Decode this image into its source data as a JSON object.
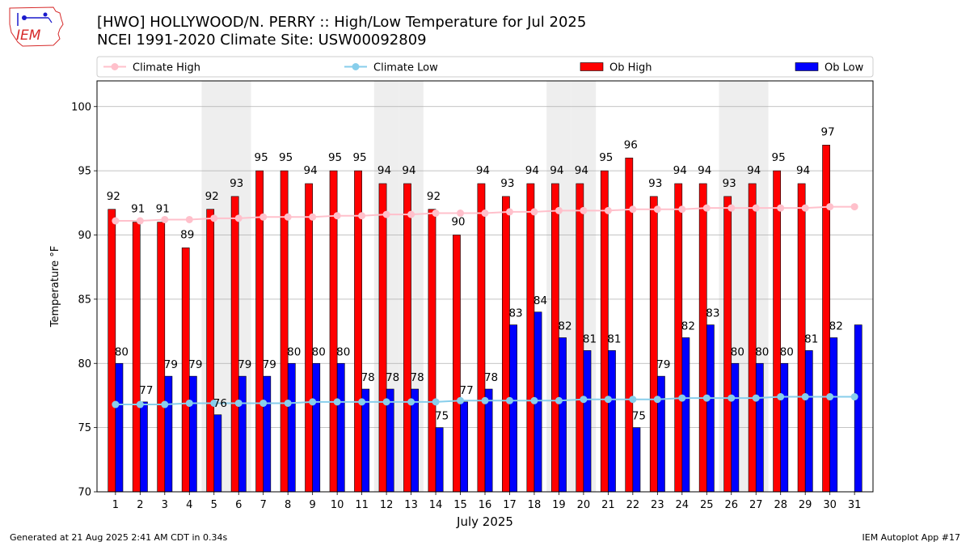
{
  "header": {
    "title_line1": "[HWO] HOLLYWOOD/N. PERRY :: High/Low Temperature for Jul 2025",
    "title_line2": "NCEI 1991-2020 Climate Site: USW00092809"
  },
  "logo": {
    "text": "IEM",
    "icon": "iowa-weather-logo-icon",
    "color": "#d62a2a"
  },
  "footer": {
    "left": "Generated at 21 Aug 2025 2:41 AM CDT in 0.34s",
    "right": "IEM Autoplot App #17"
  },
  "colors": {
    "ob_high": "#ff0000",
    "ob_low": "#0000ff",
    "climate_high": "#ffc0cb",
    "climate_low": "#87ceeb",
    "weekend_shade": "#eeeeee",
    "grid": "#b0b0b0"
  },
  "chart_data": {
    "type": "bar",
    "xlabel": "July 2025",
    "ylabel": "Temperature °F",
    "ylim": [
      70,
      102
    ],
    "yticks": [
      70,
      75,
      80,
      85,
      90,
      95,
      100
    ],
    "grid": "horizontal",
    "legend_position": "top",
    "categories": [
      "1",
      "2",
      "3",
      "4",
      "5",
      "6",
      "7",
      "8",
      "9",
      "10",
      "11",
      "12",
      "13",
      "14",
      "15",
      "16",
      "17",
      "18",
      "19",
      "20",
      "21",
      "22",
      "23",
      "24",
      "25",
      "26",
      "27",
      "28",
      "29",
      "30",
      "31"
    ],
    "shaded_days": [
      5,
      6,
      12,
      13,
      19,
      20,
      26,
      27
    ],
    "series": [
      {
        "name": "Ob High",
        "kind": "bar",
        "values": [
          92,
          91,
          91,
          89,
          92,
          93,
          95,
          95,
          94,
          95,
          95,
          94,
          94,
          92,
          90,
          94,
          93,
          94,
          94,
          94,
          95,
          96,
          93,
          94,
          94,
          93,
          94,
          95,
          94,
          97,
          null
        ]
      },
      {
        "name": "Ob Low",
        "kind": "bar",
        "values": [
          80,
          77,
          79,
          79,
          76,
          79,
          79,
          80,
          80,
          80,
          78,
          78,
          78,
          75,
          77,
          78,
          83,
          84,
          82,
          81,
          81,
          75,
          79,
          82,
          83,
          80,
          80,
          80,
          81,
          82,
          83
        ]
      },
      {
        "name": "Climate High",
        "kind": "line",
        "values": [
          91.1,
          91.1,
          91.2,
          91.2,
          91.3,
          91.3,
          91.4,
          91.4,
          91.4,
          91.5,
          91.5,
          91.6,
          91.6,
          91.7,
          91.7,
          91.7,
          91.8,
          91.8,
          91.9,
          91.9,
          91.9,
          92.0,
          92.0,
          92.0,
          92.1,
          92.1,
          92.1,
          92.1,
          92.1,
          92.2,
          92.2
        ]
      },
      {
        "name": "Climate Low",
        "kind": "line",
        "values": [
          76.8,
          76.8,
          76.8,
          76.9,
          76.9,
          76.9,
          76.9,
          76.9,
          77.0,
          77.0,
          77.0,
          77.0,
          77.0,
          77.0,
          77.1,
          77.1,
          77.1,
          77.1,
          77.1,
          77.2,
          77.2,
          77.2,
          77.2,
          77.3,
          77.3,
          77.3,
          77.3,
          77.4,
          77.4,
          77.4,
          77.4
        ]
      }
    ],
    "high_labels": [
      92,
      91,
      91,
      89,
      92,
      93,
      95,
      95,
      94,
      95,
      95,
      94,
      94,
      92,
      90,
      94,
      93,
      94,
      94,
      94,
      95,
      96,
      93,
      94,
      94,
      93,
      94,
      95,
      94,
      97,
      null
    ],
    "low_labels": [
      80,
      77,
      79,
      79,
      76,
      79,
      79,
      80,
      80,
      80,
      78,
      78,
      78,
      75,
      77,
      78,
      83,
      84,
      82,
      81,
      81,
      75,
      79,
      82,
      83,
      80,
      80,
      80,
      81,
      82,
      null
    ]
  }
}
